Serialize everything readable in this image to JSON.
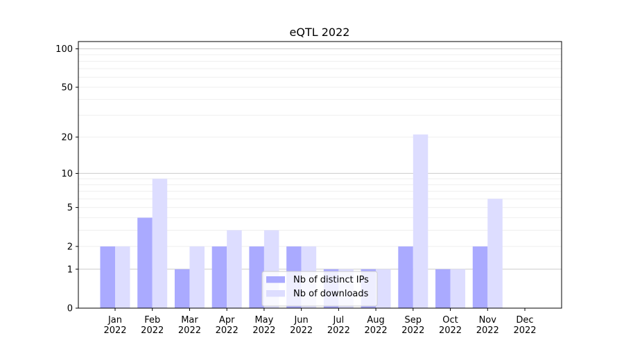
{
  "chart_data": {
    "type": "bar",
    "title": "eQTL 2022",
    "xlabel": "",
    "ylabel": "",
    "yscale": "log(1+y)",
    "ylim": [
      0,
      114
    ],
    "yticks": [
      0,
      1,
      2,
      5,
      10,
      20,
      50,
      100
    ],
    "grid": true,
    "legend_placement": "lower-center",
    "categories": [
      "Jan\n2022",
      "Feb\n2022",
      "Mar\n2022",
      "Apr\n2022",
      "May\n2022",
      "Jun\n2022",
      "Jul\n2022",
      "Aug\n2022",
      "Sep\n2022",
      "Oct\n2022",
      "Nov\n2022",
      "Dec\n2022"
    ],
    "series": [
      {
        "name": "Nb of distinct IPs",
        "color": "#aaaaff",
        "values": [
          2,
          4,
          1,
          2,
          2,
          2,
          1,
          1,
          2,
          1,
          2,
          0
        ]
      },
      {
        "name": "Nb of downloads",
        "color": "#ddddff",
        "values": [
          2,
          9,
          2,
          3,
          3,
          2,
          1,
          1,
          21,
          1,
          6,
          0
        ]
      }
    ]
  }
}
